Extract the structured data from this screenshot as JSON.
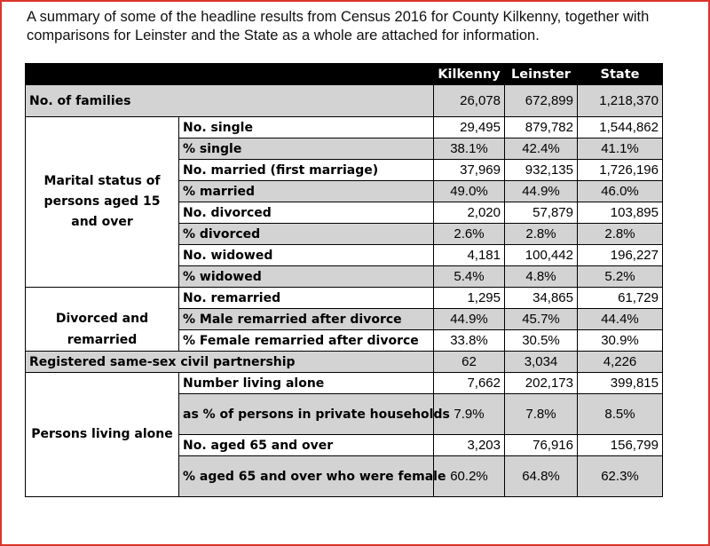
{
  "intro": {
    "line1": "A summary of some of the headline results from Census 2016 for County Kilkenny, together with",
    "line2": "comparisons for Leinster and the State as a whole are attached for information."
  },
  "columns": [
    "Kilkenny",
    "Leinster",
    "State"
  ],
  "families": {
    "label": "No. of families",
    "values": [
      "26,078",
      "672,899",
      "1,218,370"
    ]
  },
  "marital": {
    "group_line1": "Marital status of",
    "group_line2": "persons aged 15",
    "group_line3": "and over",
    "rows": [
      {
        "label": "No. single",
        "values": [
          "29,495",
          "879,782",
          "1,544,862"
        ]
      },
      {
        "label": "% single",
        "values": [
          "38.1%",
          "42.4%",
          "41.1%"
        ]
      },
      {
        "label": "No. married (first marriage)",
        "values": [
          "37,969",
          "932,135",
          "1,726,196"
        ]
      },
      {
        "label": "% married",
        "values": [
          "49.0%",
          "44.9%",
          "46.0%"
        ]
      },
      {
        "label": "No. divorced",
        "values": [
          "2,020",
          "57,879",
          "103,895"
        ]
      },
      {
        "label": "% divorced",
        "values": [
          "2.6%",
          "2.8%",
          "2.8%"
        ]
      },
      {
        "label": "No. widowed",
        "values": [
          "4,181",
          "100,442",
          "196,227"
        ]
      },
      {
        "label": "% widowed",
        "values": [
          "5.4%",
          "4.8%",
          "5.2%"
        ]
      }
    ]
  },
  "remarried": {
    "group_line1": "Divorced and",
    "group_line2": "remarried",
    "rows": [
      {
        "label": "No. remarried",
        "values": [
          "1,295",
          "34,865",
          "61,729"
        ]
      },
      {
        "label": "% Male remarried after divorce",
        "values": [
          "44.9%",
          "45.7%",
          "44.4%"
        ]
      },
      {
        "label": "% Female remarried after divorce",
        "values": [
          "33.8%",
          "30.5%",
          "30.9%"
        ]
      }
    ]
  },
  "civil": {
    "label": "Registered same-sex civil partnership",
    "values": [
      "62",
      "3,034",
      "4,226"
    ]
  },
  "alone": {
    "group": "Persons living alone",
    "rows": [
      {
        "label": "Number living alone",
        "values": [
          "7,662",
          "202,173",
          "399,815"
        ]
      },
      {
        "label": "as % of persons in private households",
        "values": [
          "7.9%",
          "7.8%",
          "8.5%"
        ]
      },
      {
        "label": "No. aged 65 and over",
        "values": [
          "3,203",
          "76,916",
          "156,799"
        ]
      },
      {
        "label": "% aged 65 and over who were female",
        "values": [
          "60.2%",
          "64.8%",
          "62.3%"
        ]
      }
    ]
  }
}
